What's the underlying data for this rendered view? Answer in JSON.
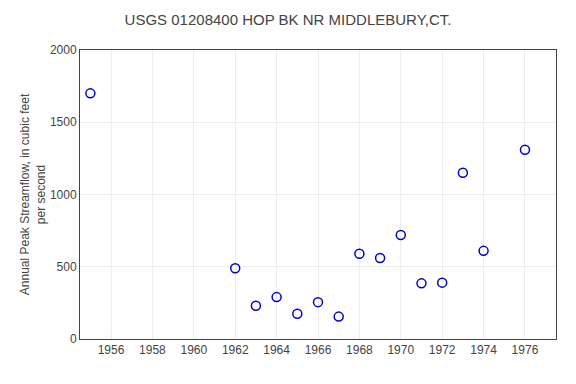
{
  "chart_data": {
    "type": "scatter",
    "title": "USGS 01208400 HOP BK NR MIDDLEBURY,CT.",
    "ylabel": "Annual Peak Streamflow, in cubic feet\nper second",
    "x": [
      1955,
      1962,
      1963,
      1964,
      1965,
      1966,
      1967,
      1968,
      1969,
      1970,
      1971,
      1972,
      1973,
      1974,
      1976
    ],
    "values": [
      1700,
      490,
      230,
      290,
      175,
      255,
      155,
      590,
      560,
      720,
      385,
      390,
      1150,
      610,
      1310
    ],
    "color": "#0000CC",
    "marker": "circle-open",
    "xlim": [
      1954.5,
      1977.5
    ],
    "xticks": [
      1956,
      1958,
      1960,
      1962,
      1964,
      1966,
      1968,
      1970,
      1972,
      1974,
      1976
    ],
    "ylim": [
      0,
      2000
    ],
    "yticks": [
      0,
      500,
      1000,
      1500,
      2000
    ],
    "grid": true
  }
}
